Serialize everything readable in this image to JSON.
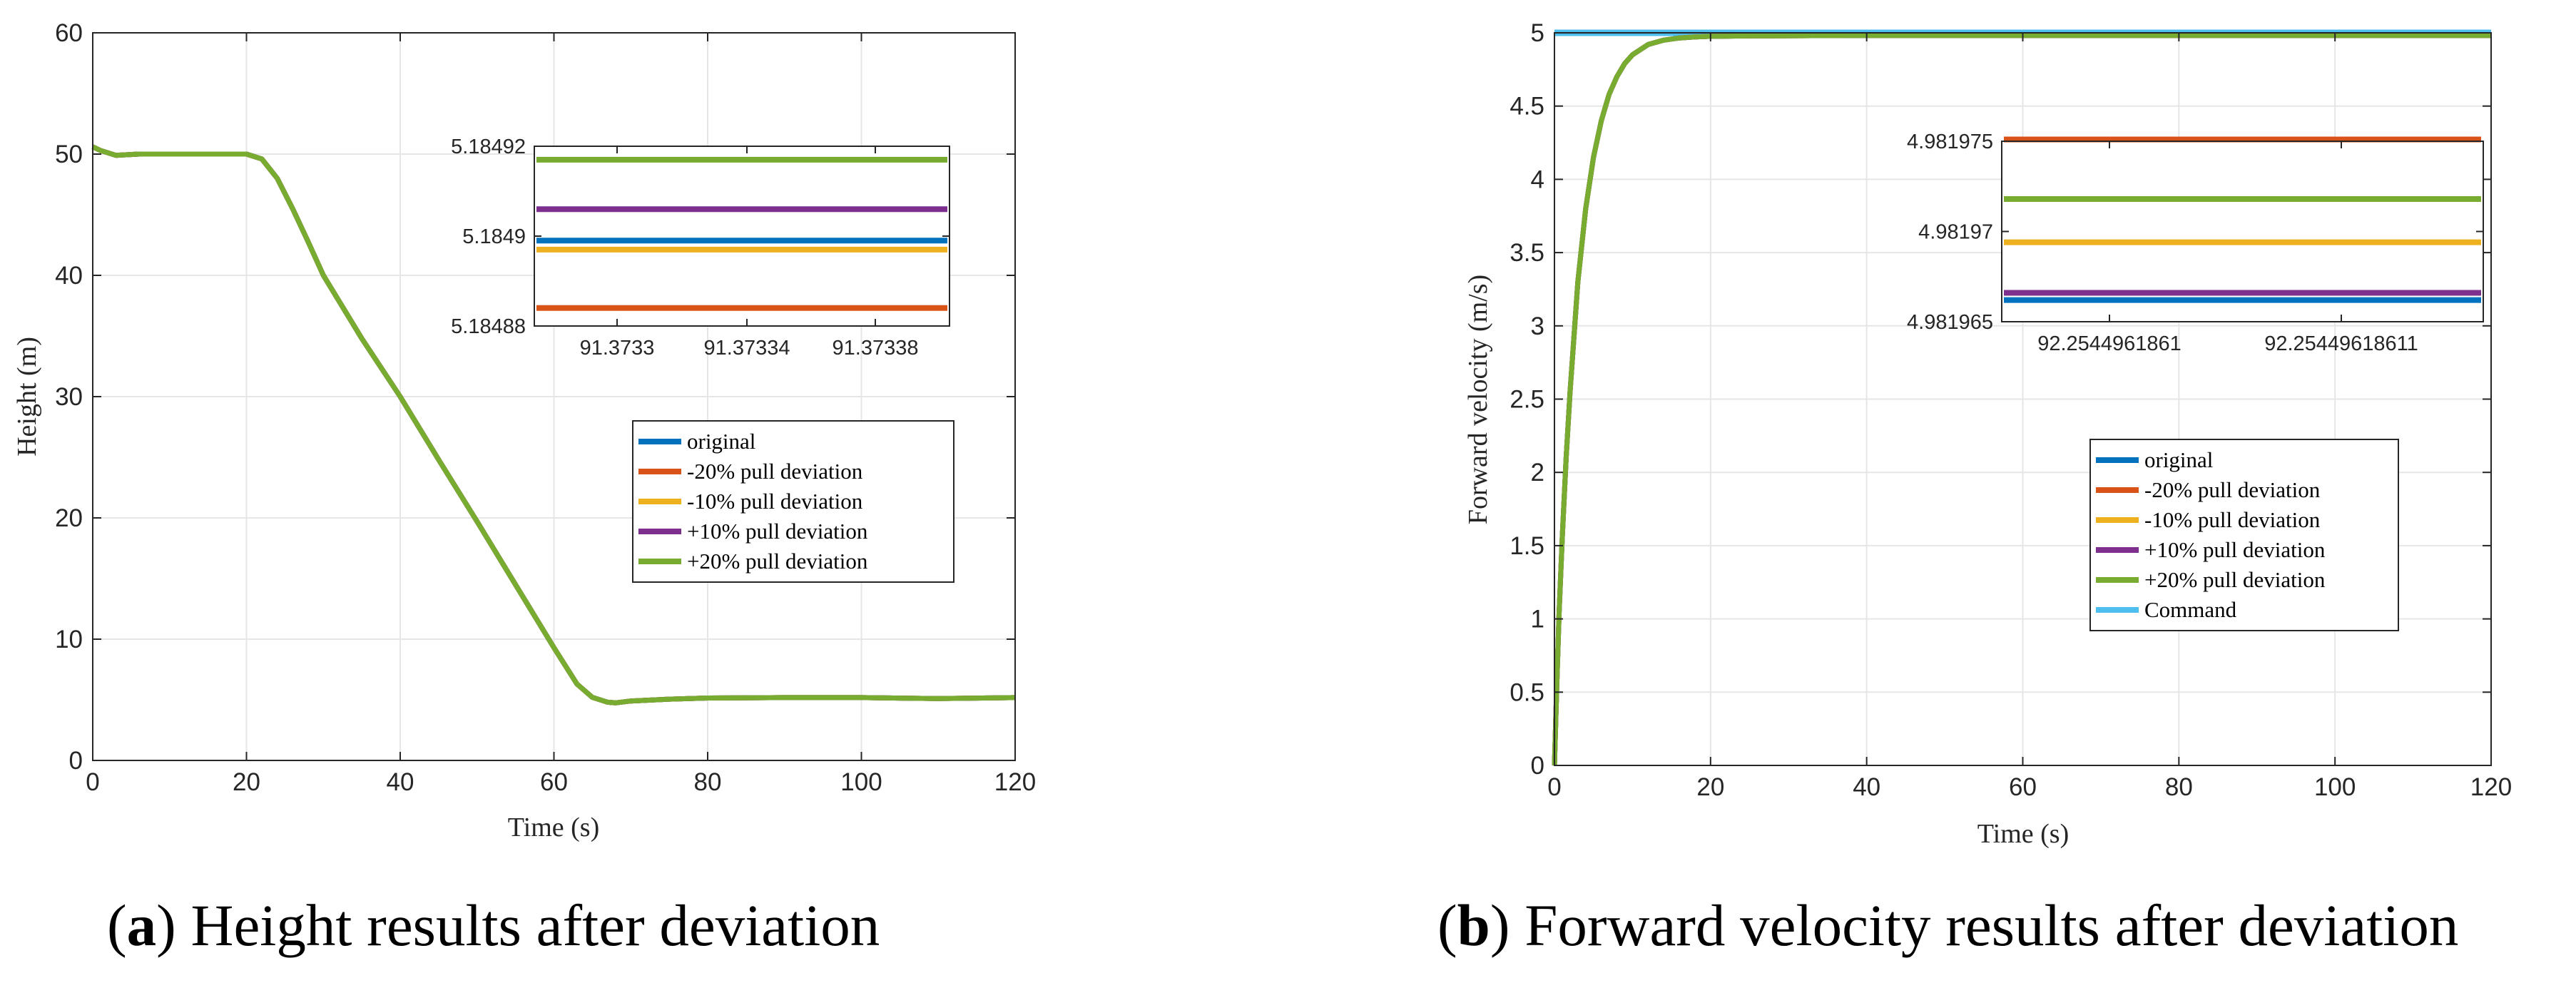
{
  "chart_data": [
    {
      "id": "a",
      "type": "line",
      "caption_letter": "a",
      "caption_text": "Height results after deviation",
      "xlabel": "Time (s)",
      "ylabel": "Height (m)",
      "xlim": [
        0,
        120
      ],
      "ylim": [
        0,
        60
      ],
      "xticks": [
        0,
        20,
        40,
        60,
        80,
        100,
        120
      ],
      "yticks": [
        0,
        10,
        20,
        30,
        40,
        50,
        60
      ],
      "grid": true,
      "legend_position": "center-right",
      "series": [
        {
          "name": "original",
          "color": "#0072BD"
        },
        {
          "name": "-20% pull deviation",
          "color": "#D95319"
        },
        {
          "name": "-10% pull deviation",
          "color": "#EDB120"
        },
        {
          "name": "+10% pull deviation",
          "color": "#7E2F8E"
        },
        {
          "name": "+20% pull deviation",
          "color": "#77AC30"
        }
      ],
      "curve": {
        "x": [
          0,
          1,
          3,
          6,
          10,
          15,
          20,
          22,
          24,
          26,
          28,
          30,
          35,
          40,
          45,
          50,
          55,
          60,
          63,
          65,
          67,
          68,
          70,
          75,
          80,
          90,
          100,
          110,
          120
        ],
        "y": [
          50.6,
          50.3,
          49.9,
          50.0,
          50.0,
          50.0,
          50.0,
          49.6,
          48.0,
          45.5,
          42.8,
          40.0,
          34.8,
          30.0,
          24.8,
          19.7,
          14.5,
          9.3,
          6.3,
          5.2,
          4.8,
          4.75,
          4.9,
          5.05,
          5.15,
          5.18,
          5.18,
          5.1,
          5.18
        ]
      },
      "inset": {
        "legend_position": "top-center",
        "xticks": [
          "91.3733",
          "91.37334",
          "91.37338"
        ],
        "yticks": [
          "5.18488",
          "5.1849",
          "5.18492"
        ],
        "ylim": [
          5.18488,
          5.18492
        ],
        "levels": [
          {
            "name": "original",
            "value": 5.184899
          },
          {
            "name": "-20% pull deviation",
            "value": 5.184884
          },
          {
            "name": "-10% pull deviation",
            "value": 5.184897
          },
          {
            "name": "+10% pull deviation",
            "value": 5.184906
          },
          {
            "name": "+20% pull deviation",
            "value": 5.184917
          }
        ]
      }
    },
    {
      "id": "b",
      "type": "line",
      "caption_letter": "b",
      "caption_text": "Forward velocity results after deviation",
      "xlabel": "Time (s)",
      "ylabel": "Forward velocity (m/s)",
      "xlim": [
        0,
        120
      ],
      "ylim": [
        0,
        5
      ],
      "xticks": [
        0,
        20,
        40,
        60,
        80,
        100,
        120
      ],
      "yticks": [
        0,
        0.5,
        1,
        1.5,
        2,
        2.5,
        3,
        3.5,
        4,
        4.5,
        5
      ],
      "grid": true,
      "legend_position": "lower-right",
      "series": [
        {
          "name": "original",
          "color": "#0072BD"
        },
        {
          "name": "-20% pull deviation",
          "color": "#D95319"
        },
        {
          "name": "-10% pull deviation",
          "color": "#EDB120"
        },
        {
          "name": "+10% pull deviation",
          "color": "#7E2F8E"
        },
        {
          "name": "+20% pull deviation",
          "color": "#77AC30"
        },
        {
          "name": "Command",
          "color": "#4DBEEE"
        }
      ],
      "command_value": 5.0,
      "curve": {
        "x": [
          0,
          0.3,
          0.6,
          1,
          1.5,
          2,
          3,
          4,
          5,
          6,
          7,
          8,
          9,
          10,
          12,
          14,
          16,
          18,
          20,
          25,
          30,
          40,
          60,
          80,
          100,
          120
        ],
        "y": [
          0,
          0.55,
          1.05,
          1.55,
          2.1,
          2.55,
          3.3,
          3.8,
          4.15,
          4.4,
          4.58,
          4.7,
          4.79,
          4.85,
          4.92,
          4.95,
          4.965,
          4.972,
          4.976,
          4.979,
          4.98,
          4.9815,
          4.982,
          4.982,
          4.982,
          4.982
        ]
      },
      "inset": {
        "legend_position": "upper-right",
        "xticks": [
          "92.2544961861",
          "92.25449618611"
        ],
        "yticks": [
          "4.981965",
          "4.98197",
          "4.981975"
        ],
        "ylim": [
          4.981965,
          4.981975
        ],
        "levels": [
          {
            "name": "original",
            "value": 4.9819662
          },
          {
            "name": "-20% pull deviation",
            "value": 4.9819751
          },
          {
            "name": "-10% pull deviation",
            "value": 4.9819694
          },
          {
            "name": "+10% pull deviation",
            "value": 4.9819666
          },
          {
            "name": "+20% pull deviation",
            "value": 4.9819718
          }
        ]
      }
    }
  ]
}
